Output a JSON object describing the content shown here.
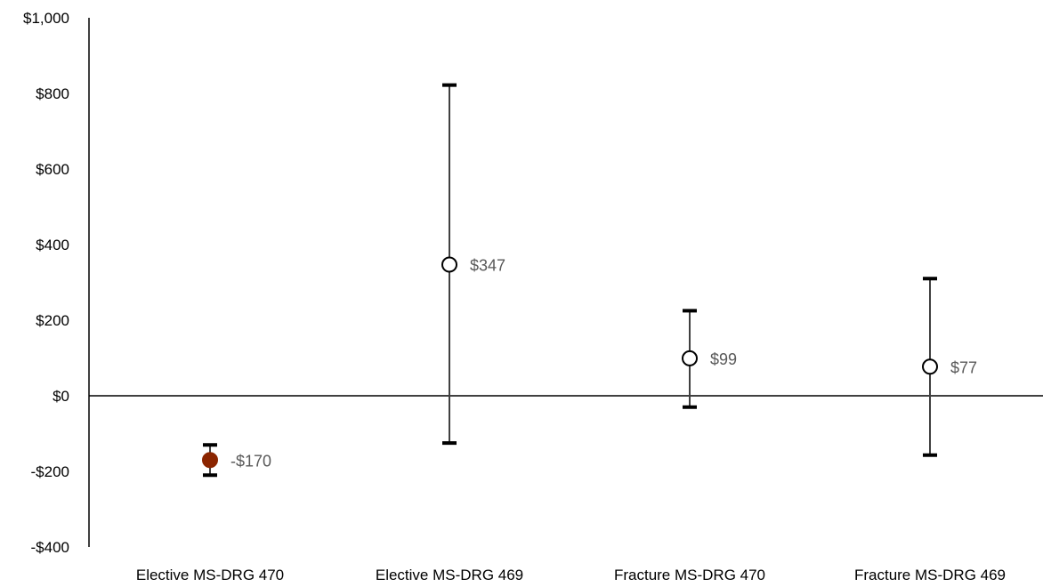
{
  "chart_data": {
    "type": "scatter",
    "title": "",
    "xlabel": "",
    "ylabel": "",
    "ylim": [
      -400,
      1000
    ],
    "y_ticks": [
      1000,
      800,
      600,
      400,
      200,
      0,
      -200,
      -400
    ],
    "y_tick_labels": [
      "$1,000",
      "$800",
      "$600",
      "$400",
      "$200",
      "$0",
      "-$200",
      "-$400"
    ],
    "categories": [
      "Elective MS-DRG 470",
      "Elective MS-DRG 469",
      "Fracture MS-DRG 470",
      "Fracture MS-DRG 469"
    ],
    "values": [
      -170,
      347,
      99,
      77
    ],
    "data_labels": [
      "-$170",
      "$347",
      "$99",
      "$77"
    ],
    "error_low": [
      -210,
      -125,
      -30,
      -157
    ],
    "error_high": [
      -130,
      822,
      225,
      310
    ],
    "marker_fill": [
      "#8B2500",
      "#ffffff",
      "#ffffff",
      "#ffffff"
    ],
    "marker_stroke": "#000000",
    "error_bar_color": "#404040",
    "grid": false,
    "legend": "none"
  }
}
